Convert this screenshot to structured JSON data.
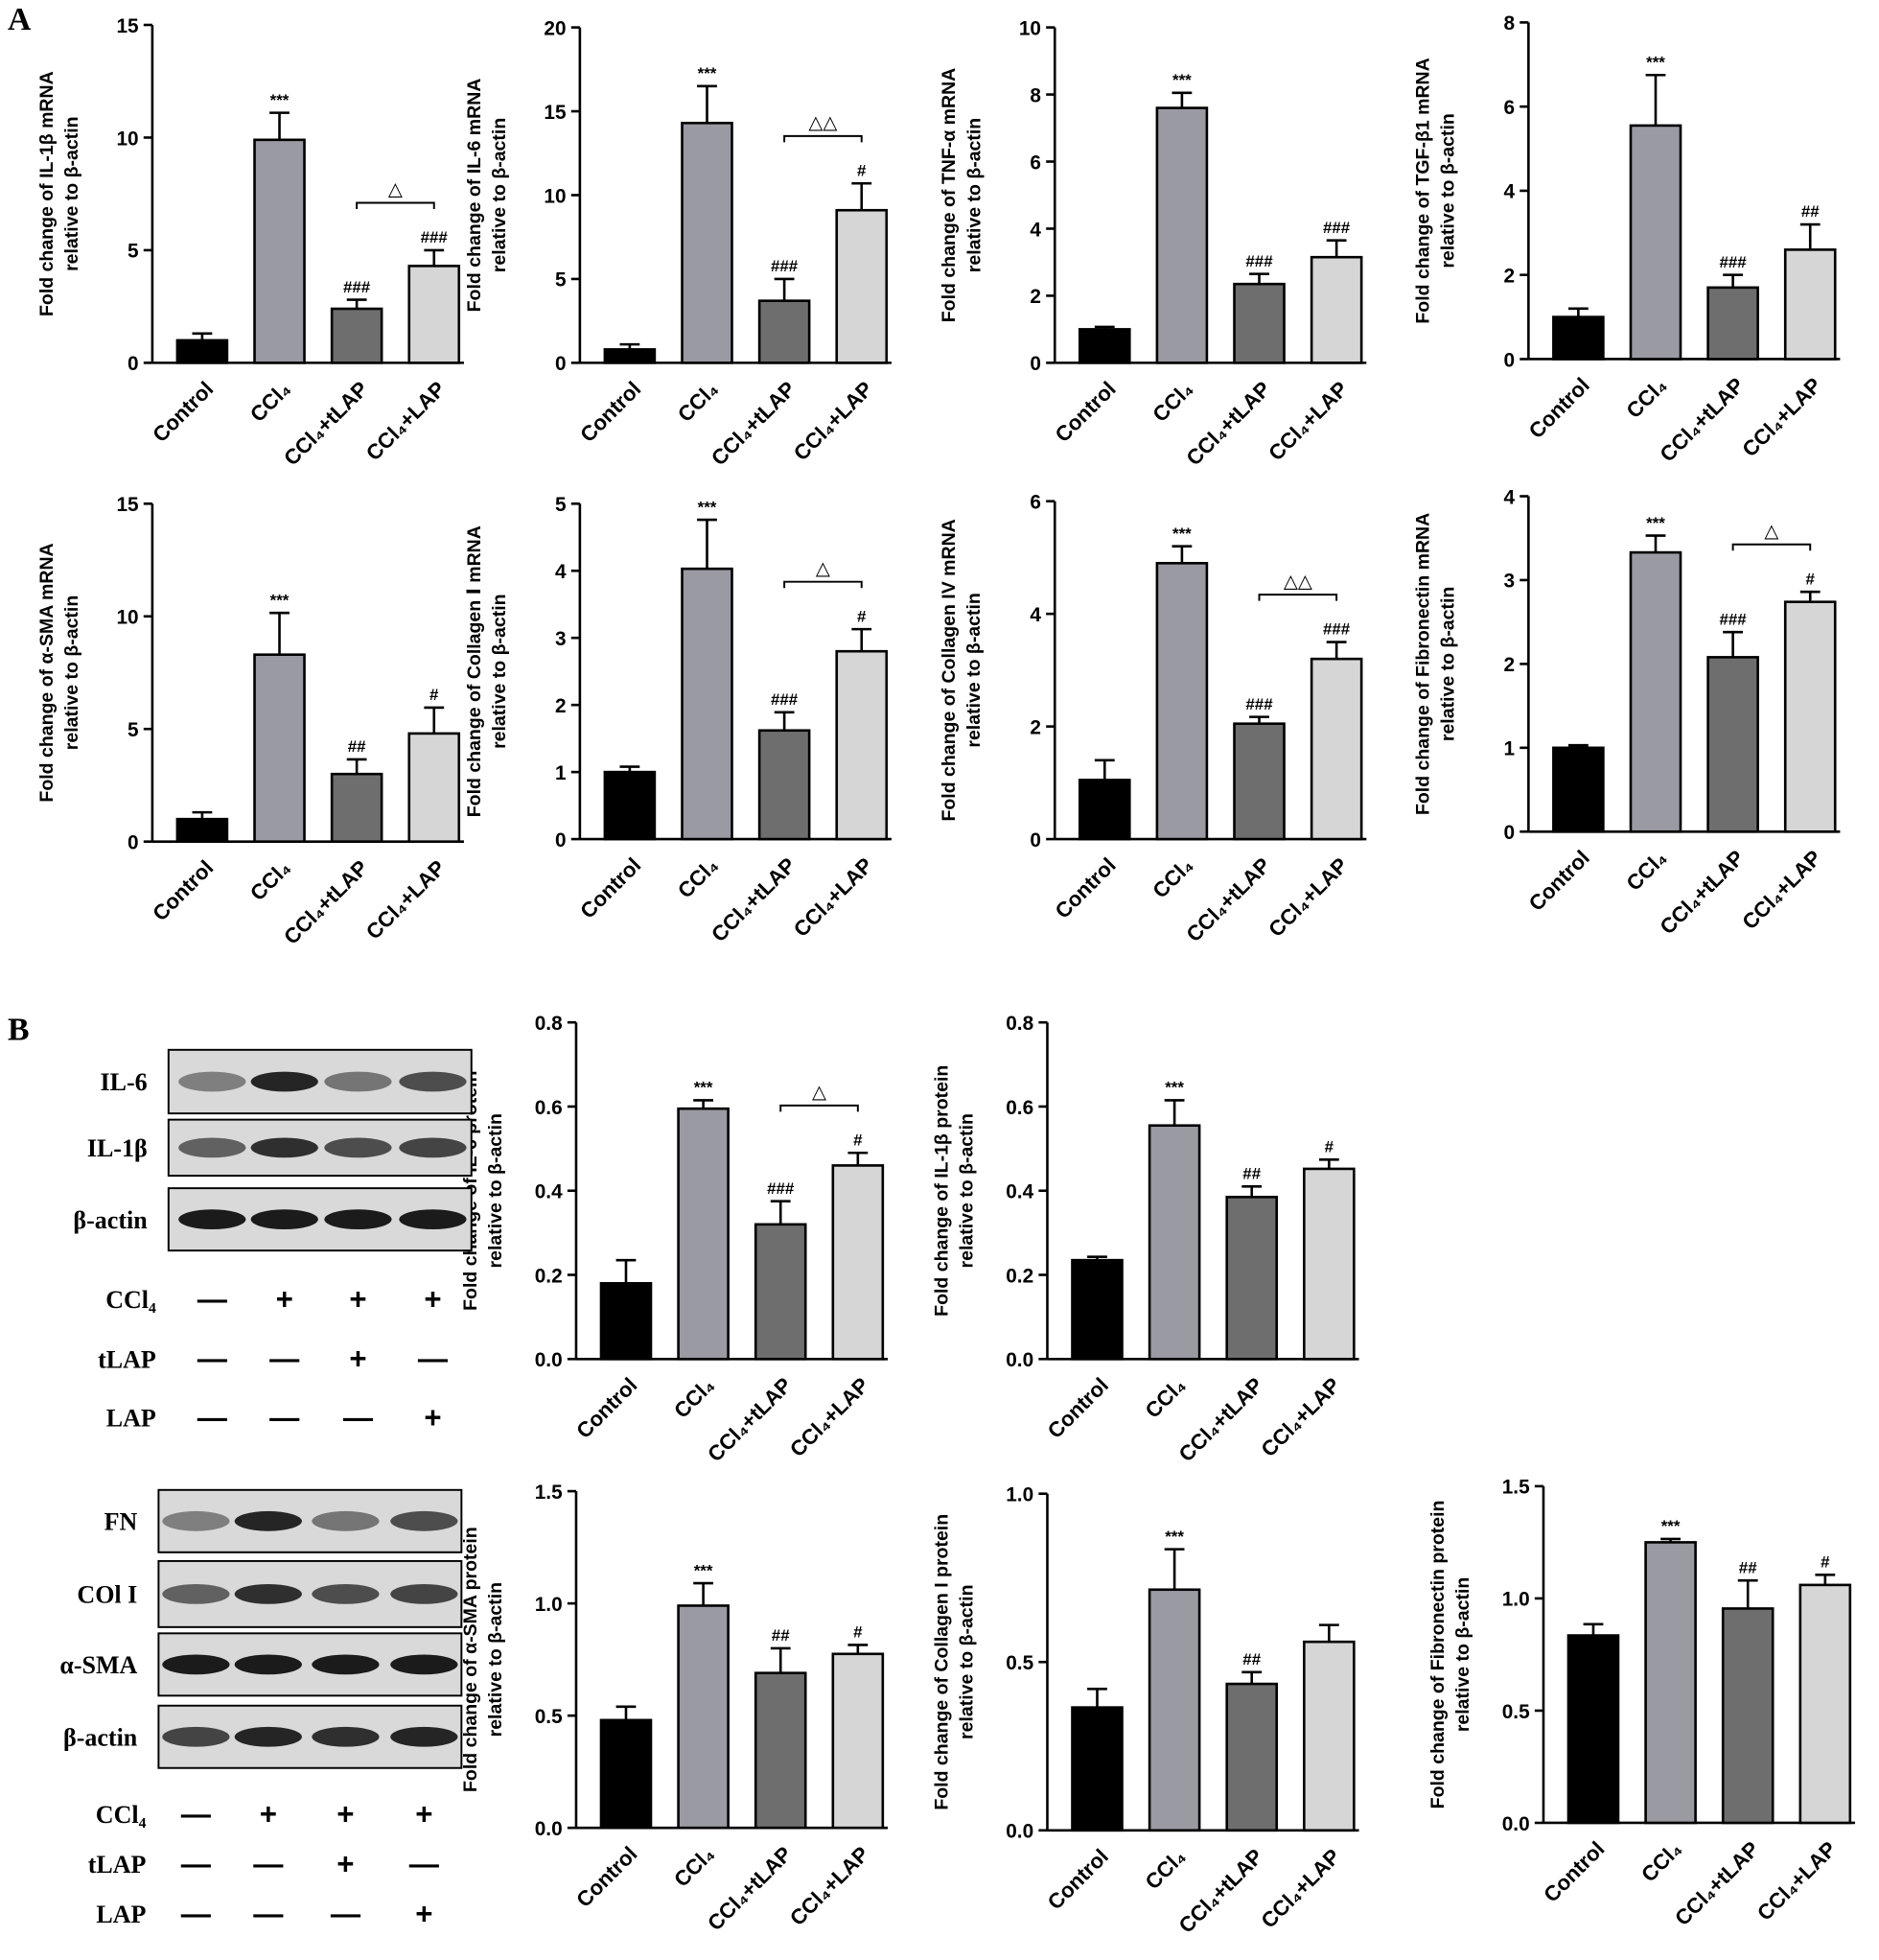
{
  "panel_labels": [
    "A",
    "B"
  ],
  "chart_data": [
    {
      "type": "bar",
      "ylabel": [
        "Fold change of IL-1β mRNA",
        "relative to β-actin"
      ],
      "categories": [
        "Control",
        "CCl₄",
        "CCl₄+tLAP",
        "CCl₄+LAP"
      ],
      "colors": [
        "#000000",
        "#9a9aa2",
        "#6e6e6e",
        "#d6d6d6"
      ],
      "values": [
        1.0,
        9.9,
        2.4,
        4.3
      ],
      "errors": [
        0.3,
        1.2,
        0.4,
        0.7
      ],
      "annotations": [
        null,
        "***",
        "###",
        "###"
      ],
      "brackets": [
        null,
        null,
        null,
        "△"
      ],
      "ylim": [
        0,
        15
      ],
      "yticks": [
        0,
        5,
        10,
        15
      ]
    },
    {
      "type": "bar",
      "ylabel": [
        "Fold change of IL-6 mRNA",
        "relative to β-actin"
      ],
      "categories": [
        "Control",
        "CCl₄",
        "CCl₄+tLAP",
        "CCl₄+LAP"
      ],
      "colors": [
        "#000000",
        "#9a9aa2",
        "#6e6e6e",
        "#d6d6d6"
      ],
      "values": [
        0.8,
        14.3,
        3.7,
        9.1
      ],
      "errors": [
        0.3,
        2.2,
        1.3,
        1.6
      ],
      "annotations": [
        null,
        "***",
        "###",
        "#"
      ],
      "brackets": [
        null,
        null,
        null,
        "△△"
      ],
      "ylim": [
        0,
        20
      ],
      "yticks": [
        0,
        5,
        10,
        15,
        20
      ]
    },
    {
      "type": "bar",
      "ylabel": [
        "Fold change of TNF-α mRNA",
        "relative to β-actin"
      ],
      "categories": [
        "Control",
        "CCl₄",
        "CCl₄+tLAP",
        "CCl₄+LAP"
      ],
      "colors": [
        "#000000",
        "#9a9aa2",
        "#6e6e6e",
        "#d6d6d6"
      ],
      "values": [
        1.0,
        7.6,
        2.35,
        3.15
      ],
      "errors": [
        0.07,
        0.45,
        0.3,
        0.5
      ],
      "annotations": [
        null,
        "***",
        "###",
        "###"
      ],
      "brackets": [
        null,
        null,
        null,
        null
      ],
      "ylim": [
        0,
        10
      ],
      "yticks": [
        0,
        2,
        4,
        6,
        8,
        10
      ]
    },
    {
      "type": "bar",
      "ylabel": [
        "Fold change of TGF-β1 mRNA",
        "relative to β-actin"
      ],
      "categories": [
        "Control",
        "CCl₄",
        "CCl₄+tLAP",
        "CCl₄+LAP"
      ],
      "colors": [
        "#000000",
        "#9a9aa2",
        "#6e6e6e",
        "#d6d6d6"
      ],
      "values": [
        1.0,
        5.55,
        1.7,
        2.6
      ],
      "errors": [
        0.2,
        1.2,
        0.3,
        0.6
      ],
      "annotations": [
        null,
        "***",
        "###",
        "##"
      ],
      "brackets": [
        null,
        null,
        null,
        null
      ],
      "ylim": [
        0,
        8
      ],
      "yticks": [
        0,
        2,
        4,
        6,
        8
      ]
    },
    {
      "type": "bar",
      "ylabel": [
        "Fold change of α-SMA mRNA",
        "relative to β-actin"
      ],
      "categories": [
        "Control",
        "CCl₄",
        "CCl₄+tLAP",
        "CCl₄+LAP"
      ],
      "colors": [
        "#000000",
        "#9a9aa2",
        "#6e6e6e",
        "#d6d6d6"
      ],
      "values": [
        1.0,
        8.3,
        3.0,
        4.8
      ],
      "errors": [
        0.3,
        1.85,
        0.65,
        1.15
      ],
      "annotations": [
        null,
        "***",
        "##",
        "#"
      ],
      "brackets": [
        null,
        null,
        null,
        null
      ],
      "ylim": [
        0,
        15
      ],
      "yticks": [
        0,
        5,
        10,
        15
      ]
    },
    {
      "type": "bar",
      "ylabel": [
        "Fold change of Collagen Ⅰ mRNA",
        "relative to β-actin"
      ],
      "categories": [
        "Control",
        "CCl₄",
        "CCl₄+tLAP",
        "CCl₄+LAP"
      ],
      "colors": [
        "#000000",
        "#9a9aa2",
        "#6e6e6e",
        "#d6d6d6"
      ],
      "values": [
        1.0,
        4.03,
        1.62,
        2.8
      ],
      "errors": [
        0.08,
        0.73,
        0.27,
        0.33
      ],
      "annotations": [
        null,
        "***",
        "###",
        "#"
      ],
      "brackets": [
        null,
        null,
        null,
        "△"
      ],
      "ylim": [
        0,
        5
      ],
      "yticks": [
        0,
        1,
        2,
        3,
        4,
        5
      ]
    },
    {
      "type": "bar",
      "ylabel": [
        "Fold change of Collagen IV mRNA",
        "relative to β-actin"
      ],
      "categories": [
        "Control",
        "CCl₄",
        "CCl₄+tLAP",
        "CCl₄+LAP"
      ],
      "colors": [
        "#000000",
        "#9a9aa2",
        "#6e6e6e",
        "#d6d6d6"
      ],
      "values": [
        1.05,
        4.9,
        2.05,
        3.2
      ],
      "errors": [
        0.35,
        0.3,
        0.12,
        0.3
      ],
      "annotations": [
        null,
        "***",
        "###",
        "###"
      ],
      "brackets": [
        null,
        null,
        null,
        "△△"
      ],
      "ylim": [
        0,
        6
      ],
      "yticks": [
        0,
        2,
        4,
        6
      ]
    },
    {
      "type": "bar",
      "ylabel": [
        "Fold change of Fibronectin mRNA",
        "relative to β-actin"
      ],
      "categories": [
        "Control",
        "CCl₄",
        "CCl₄+tLAP",
        "CCl₄+LAP"
      ],
      "colors": [
        "#000000",
        "#9a9aa2",
        "#6e6e6e",
        "#d6d6d6"
      ],
      "values": [
        1.0,
        3.33,
        2.08,
        2.74
      ],
      "errors": [
        0.03,
        0.2,
        0.3,
        0.12
      ],
      "annotations": [
        null,
        "***",
        "###",
        "#"
      ],
      "brackets": [
        null,
        null,
        null,
        "△"
      ],
      "ylim": [
        0,
        4
      ],
      "yticks": [
        0,
        1,
        2,
        3,
        4
      ]
    },
    {
      "type": "bar",
      "ylabel": [
        "Fold change of IL-6 protein",
        "relative to β-actin"
      ],
      "categories": [
        "Control",
        "CCl₄",
        "CCl₄+tLAP",
        "CCl₄+LAP"
      ],
      "colors": [
        "#000000",
        "#9a9aa2",
        "#6e6e6e",
        "#d6d6d6"
      ],
      "values": [
        0.18,
        0.595,
        0.32,
        0.46
      ],
      "errors": [
        0.055,
        0.02,
        0.055,
        0.03
      ],
      "annotations": [
        null,
        "***",
        "###",
        "#"
      ],
      "brackets": [
        null,
        null,
        null,
        "△"
      ],
      "ylim": [
        0,
        0.8
      ],
      "yticks": [
        {
          "value": 0,
          "label": "0.0"
        },
        0.2,
        0.4,
        0.6,
        0.8
      ]
    },
    {
      "type": "bar",
      "ylabel": [
        "Fold change of IL-1β protein",
        "relative to β-actin"
      ],
      "categories": [
        "Control",
        "CCl₄",
        "CCl₄+tLAP",
        "CCl₄+LAP"
      ],
      "colors": [
        "#000000",
        "#9a9aa2",
        "#6e6e6e",
        "#d6d6d6"
      ],
      "values": [
        0.235,
        0.555,
        0.385,
        0.452
      ],
      "errors": [
        0.008,
        0.06,
        0.025,
        0.022
      ],
      "annotations": [
        null,
        "***",
        "##",
        "#"
      ],
      "brackets": [
        null,
        null,
        null,
        null
      ],
      "ylim": [
        0,
        0.8
      ],
      "yticks": [
        {
          "value": 0,
          "label": "0.0"
        },
        0.2,
        0.4,
        0.6,
        0.8
      ]
    },
    {
      "type": "bar",
      "ylabel": [
        "Fold change of α-SMA protein",
        "relative to β-actin"
      ],
      "categories": [
        "Control",
        "CCl₄",
        "CCl₄+tLAP",
        "CCl₄+LAP"
      ],
      "colors": [
        "#000000",
        "#9a9aa2",
        "#6e6e6e",
        "#d6d6d6"
      ],
      "values": [
        0.48,
        0.99,
        0.69,
        0.775
      ],
      "errors": [
        0.06,
        0.1,
        0.11,
        0.04
      ],
      "annotations": [
        null,
        "***",
        "##",
        "#"
      ],
      "brackets": [
        null,
        null,
        null,
        null
      ],
      "ylim": [
        0,
        1.5
      ],
      "yticks": [
        {
          "value": 0,
          "label": "0.0"
        },
        0.5,
        {
          "value": 1,
          "label": "1.0"
        },
        1.5
      ]
    },
    {
      "type": "bar",
      "ylabel": [
        "Fold change of Collagen I protein",
        "relative to β-actin"
      ],
      "categories": [
        "Control",
        "CCl₄",
        "CCl₄+tLAP",
        "CCl₄+LAP"
      ],
      "colors": [
        "#000000",
        "#9a9aa2",
        "#6e6e6e",
        "#d6d6d6"
      ],
      "values": [
        0.365,
        0.715,
        0.435,
        0.56
      ],
      "errors": [
        0.055,
        0.12,
        0.035,
        0.05
      ],
      "annotations": [
        null,
        "***",
        "##",
        null
      ],
      "brackets": [
        null,
        null,
        null,
        null
      ],
      "ylim": [
        0,
        1
      ],
      "yticks": [
        {
          "value": 0,
          "label": "0.0"
        },
        0.5,
        {
          "value": 1,
          "label": "1.0"
        }
      ]
    },
    {
      "type": "bar",
      "ylabel": [
        "Fold change of Fibronectin protein",
        "relative to β-actin"
      ],
      "categories": [
        "Control",
        "CCl₄",
        "CCl₄+tLAP",
        "CCl₄+LAP"
      ],
      "colors": [
        "#000000",
        "#9a9aa2",
        "#6e6e6e",
        "#d6d6d6"
      ],
      "values": [
        0.835,
        1.25,
        0.955,
        1.06
      ],
      "errors": [
        0.05,
        0.015,
        0.125,
        0.045
      ],
      "annotations": [
        null,
        "***",
        "##",
        "#"
      ],
      "brackets": [
        null,
        null,
        null,
        null
      ],
      "ylim": [
        0,
        1.5
      ],
      "yticks": [
        {
          "value": 0,
          "label": "0.0"
        },
        0.5,
        {
          "value": 1,
          "label": "1.0"
        },
        1.5
      ]
    }
  ],
  "blots": [
    {
      "rows": [
        "IL-6",
        "IL-1β",
        "β-actin"
      ],
      "conditions": [
        {
          "name": "CCl₄",
          "signs": [
            "—",
            "+",
            "+",
            "+"
          ]
        },
        {
          "name": "tLAP",
          "signs": [
            "—",
            "—",
            "+",
            "—"
          ]
        },
        {
          "name": "LAP",
          "signs": [
            "—",
            "—",
            "—",
            "+"
          ]
        }
      ]
    },
    {
      "rows": [
        "FN",
        "COl I",
        "α-SMA",
        "β-actin"
      ],
      "conditions": [
        {
          "name": "CCl₄",
          "signs": [
            "—",
            "+",
            "+",
            "+"
          ]
        },
        {
          "name": "tLAP",
          "signs": [
            "—",
            "—",
            "+",
            "—"
          ]
        },
        {
          "name": "LAP",
          "signs": [
            "—",
            "—",
            "—",
            "+"
          ]
        }
      ]
    }
  ]
}
